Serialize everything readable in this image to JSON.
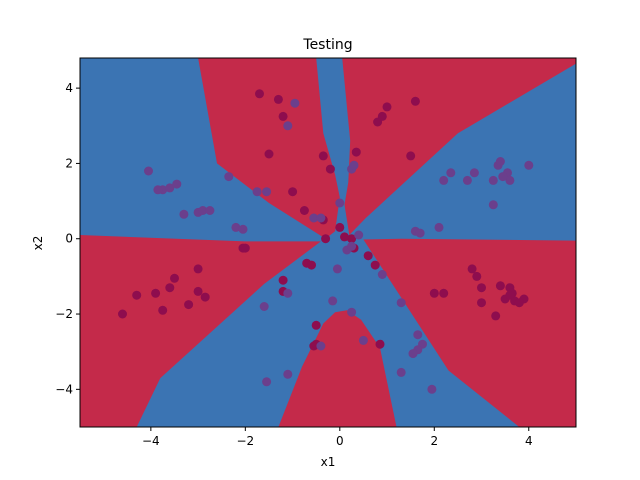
{
  "chart_data": {
    "type": "scatter",
    "title": "Testing",
    "xlabel": "x1",
    "ylabel": "x2",
    "xlim": [
      -5.5,
      5.0
    ],
    "ylim": [
      -5.0,
      4.8
    ],
    "xticks": [
      -4,
      -2,
      0,
      2,
      4
    ],
    "yticks": [
      -4,
      -2,
      0,
      2,
      4
    ],
    "xtick_labels": [
      "−4",
      "−2",
      "0",
      "2",
      "4"
    ],
    "ytick_labels": [
      "−4",
      "−2",
      "0",
      "2",
      "4"
    ],
    "grid": false,
    "background_regions": [
      {
        "class": "red",
        "color": "#c42a4a",
        "description": "classifier decision region"
      },
      {
        "class": "blue",
        "color": "#3b74b3",
        "description": "classifier decision region"
      }
    ],
    "series": [
      {
        "color": "#8e0d4e",
        "points": [
          [
            -1.7,
            3.85
          ],
          [
            -1.3,
            3.7
          ],
          [
            -1.2,
            3.25
          ],
          [
            -1.5,
            2.25
          ],
          [
            -1.0,
            1.25
          ],
          [
            1.0,
            3.5
          ],
          [
            1.6,
            3.65
          ],
          [
            0.8,
            3.1
          ],
          [
            0.9,
            3.25
          ],
          [
            0.35,
            2.3
          ],
          [
            -0.35,
            2.2
          ],
          [
            -0.2,
            1.85
          ],
          [
            1.5,
            2.2
          ],
          [
            0.0,
            0.3
          ],
          [
            -4.6,
            -2.0
          ],
          [
            -4.3,
            -1.5
          ],
          [
            -3.9,
            -1.45
          ],
          [
            -3.75,
            -1.9
          ],
          [
            -3.6,
            -1.3
          ],
          [
            -3.5,
            -1.05
          ],
          [
            -3.2,
            -1.75
          ],
          [
            -3.0,
            -1.4
          ],
          [
            -2.85,
            -1.55
          ],
          [
            -3.0,
            -0.8
          ],
          [
            -2.05,
            -0.25
          ],
          [
            -2.0,
            -0.25
          ],
          [
            -1.2,
            -1.1
          ],
          [
            -1.2,
            -1.4
          ],
          [
            -0.7,
            -0.65
          ],
          [
            -0.6,
            -0.7
          ],
          [
            -0.5,
            -2.3
          ],
          [
            -0.55,
            -2.85
          ],
          [
            -0.5,
            -2.8
          ],
          [
            0.85,
            -2.8
          ],
          [
            0.6,
            -0.45
          ],
          [
            0.75,
            -0.7
          ],
          [
            0.3,
            -0.25
          ],
          [
            0.25,
            0.0
          ],
          [
            0.1,
            0.05
          ],
          [
            -0.35,
            0.5
          ],
          [
            -0.75,
            0.75
          ],
          [
            -0.3,
            0.0
          ],
          [
            2.0,
            -1.45
          ],
          [
            2.2,
            -1.45
          ],
          [
            2.8,
            -0.8
          ],
          [
            2.9,
            -1.0
          ],
          [
            3.0,
            -1.3
          ],
          [
            3.0,
            -1.7
          ],
          [
            3.3,
            -2.05
          ],
          [
            3.4,
            -1.25
          ],
          [
            3.5,
            -1.6
          ],
          [
            3.6,
            -1.3
          ],
          [
            3.65,
            -1.45
          ],
          [
            3.7,
            -1.65
          ],
          [
            3.9,
            -1.6
          ],
          [
            3.6,
            -1.5
          ],
          [
            3.8,
            -1.7
          ]
        ]
      },
      {
        "color": "#6b3f8c",
        "points": [
          [
            -4.05,
            1.8
          ],
          [
            -3.75,
            1.3
          ],
          [
            -3.6,
            1.35
          ],
          [
            -3.45,
            1.45
          ],
          [
            -3.85,
            1.3
          ],
          [
            -3.3,
            0.65
          ],
          [
            -3.0,
            0.7
          ],
          [
            -2.9,
            0.75
          ],
          [
            -2.75,
            0.75
          ],
          [
            -2.35,
            1.65
          ],
          [
            -1.75,
            1.25
          ],
          [
            -1.55,
            1.25
          ],
          [
            -2.2,
            0.3
          ],
          [
            -2.05,
            0.25
          ],
          [
            -1.1,
            3.0
          ],
          [
            -0.95,
            3.6
          ],
          [
            -0.55,
            0.55
          ],
          [
            0.0,
            0.95
          ],
          [
            0.25,
            1.85
          ],
          [
            0.3,
            1.95
          ],
          [
            0.4,
            0.1
          ],
          [
            -0.4,
            0.55
          ],
          [
            2.2,
            1.55
          ],
          [
            2.35,
            1.75
          ],
          [
            2.7,
            1.55
          ],
          [
            2.85,
            1.75
          ],
          [
            3.25,
            1.55
          ],
          [
            3.35,
            1.95
          ],
          [
            3.4,
            2.05
          ],
          [
            3.55,
            1.75
          ],
          [
            3.6,
            1.55
          ],
          [
            3.45,
            1.65
          ],
          [
            4.0,
            1.95
          ],
          [
            3.25,
            0.9
          ],
          [
            1.6,
            0.2
          ],
          [
            1.7,
            0.15
          ],
          [
            2.1,
            0.3
          ],
          [
            -1.6,
            -1.8
          ],
          [
            -1.1,
            -1.45
          ],
          [
            -0.15,
            -1.65
          ],
          [
            0.25,
            -1.95
          ],
          [
            0.5,
            -2.7
          ],
          [
            0.9,
            -0.95
          ],
          [
            1.3,
            -1.7
          ],
          [
            1.65,
            -2.55
          ],
          [
            1.75,
            -2.8
          ],
          [
            1.65,
            -2.95
          ],
          [
            1.55,
            -3.05
          ],
          [
            1.3,
            -3.55
          ],
          [
            1.95,
            -4.0
          ],
          [
            -1.55,
            -3.8
          ],
          [
            -1.1,
            -3.6
          ],
          [
            -0.4,
            -2.85
          ],
          [
            -0.05,
            -0.8
          ],
          [
            0.15,
            -0.3
          ],
          [
            0.25,
            -0.2
          ]
        ]
      }
    ]
  }
}
